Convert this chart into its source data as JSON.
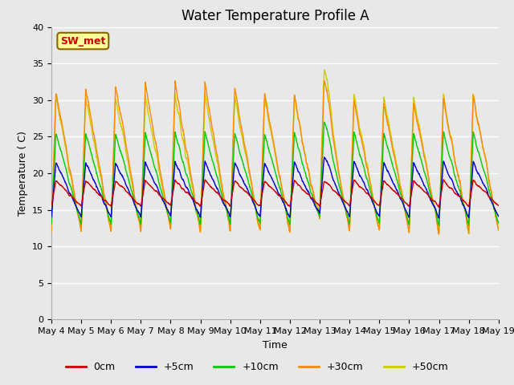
{
  "title": "Water Temperature Profile A",
  "xlabel": "Time",
  "ylabel": "Temperature ( C)",
  "ylim": [
    0,
    40
  ],
  "yticks": [
    0,
    5,
    10,
    15,
    20,
    25,
    30,
    35,
    40
  ],
  "xlim_days": [
    0,
    15
  ],
  "x_tick_labels": [
    "May 4",
    "May 5",
    "May 6",
    "May 7",
    "May 8",
    "May 9",
    "May 10",
    "May 11",
    "May 12",
    "May 13",
    "May 14",
    "May 15",
    "May 16",
    "May 17",
    "May 18",
    "May 19"
  ],
  "legend_labels": [
    "0cm",
    "+5cm",
    "+10cm",
    "+30cm",
    "+50cm"
  ],
  "line_colors": [
    "#cc0000",
    "#0000cc",
    "#00cc00",
    "#ff8800",
    "#cccc00"
  ],
  "annotation_text": "SW_met",
  "annotation_box_facecolor": "#ffff99",
  "annotation_text_color": "#cc0000",
  "annotation_edge_color": "#886600",
  "fig_facecolor": "#e8e8e8",
  "plot_bg_color": "#e8e8e8",
  "title_fontsize": 12,
  "label_fontsize": 9,
  "tick_fontsize": 8
}
